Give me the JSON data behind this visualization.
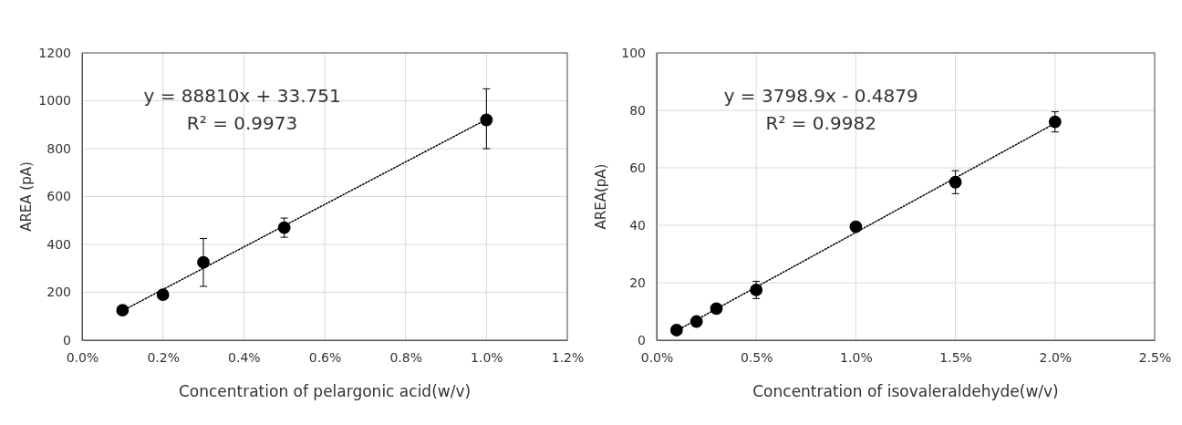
{
  "chart_data": [
    {
      "type": "scatter",
      "xlabel": "Concentration of pelargonic acid(w/v)",
      "ylabel": "AREA (pA)",
      "xlim": [
        0,
        0.012
      ],
      "xticks": [
        {
          "value": 0,
          "label": "0.0%"
        },
        {
          "value": 0.002,
          "label": "0.2%"
        },
        {
          "value": 0.004,
          "label": "0.4%"
        },
        {
          "value": 0.006,
          "label": "0.6%"
        },
        {
          "value": 0.008,
          "label": "0.8%"
        },
        {
          "value": 0.01,
          "label": "1.0%"
        },
        {
          "value": 0.012,
          "label": "1.2%"
        }
      ],
      "ylim": [
        0,
        1200
      ],
      "yticks": [
        0,
        200,
        400,
        600,
        800,
        1000,
        1200
      ],
      "grid": true,
      "marker": "circle",
      "annotations": [
        "y = 88810x + 33.751",
        "R² = 0.9973"
      ],
      "series": [
        {
          "color": "#000000",
          "x": [
            0.001,
            0.002,
            0.003,
            0.005,
            0.01
          ],
          "values": [
            125,
            190,
            325,
            470,
            920
          ],
          "errors": [
            null,
            null,
            100,
            40,
            [
              800,
              1050
            ]
          ]
        },
        {
          "type": "line",
          "color": "#000000",
          "line_style": "dotted",
          "marker": "none",
          "x": [
            0.001,
            0.01
          ],
          "values": [
            123,
            922
          ]
        }
      ]
    },
    {
      "type": "scatter",
      "xlabel": "Concentration of isovaleraldehyde(w/v)",
      "ylabel": "AREA(pA)",
      "xlim": [
        0,
        0.025
      ],
      "xticks": [
        {
          "value": 0,
          "label": "0.0%"
        },
        {
          "value": 0.005,
          "label": "0.5%"
        },
        {
          "value": 0.01,
          "label": "1.0%"
        },
        {
          "value": 0.015,
          "label": "1.5%"
        },
        {
          "value": 0.02,
          "label": "2.0%"
        },
        {
          "value": 0.025,
          "label": "2.5%"
        }
      ],
      "ylim": [
        0,
        100
      ],
      "yticks": [
        0,
        20,
        40,
        60,
        80,
        100
      ],
      "grid": true,
      "marker": "circle",
      "annotations": [
        "y = 3798.9x - 0.4879",
        "R² = 0.9982"
      ],
      "series": [
        {
          "color": "#000000",
          "x": [
            0.001,
            0.002,
            0.003,
            0.005,
            0.01,
            0.015,
            0.02
          ],
          "values": [
            3.5,
            6.5,
            11,
            17.5,
            39.5,
            55,
            76
          ],
          "errors": [
            null,
            null,
            null,
            3,
            null,
            4,
            3.5
          ]
        },
        {
          "type": "line",
          "color": "#000000",
          "line_style": "dotted",
          "marker": "none",
          "x": [
            0.001,
            0.02
          ],
          "values": [
            3.3,
            75.5
          ]
        }
      ]
    }
  ]
}
